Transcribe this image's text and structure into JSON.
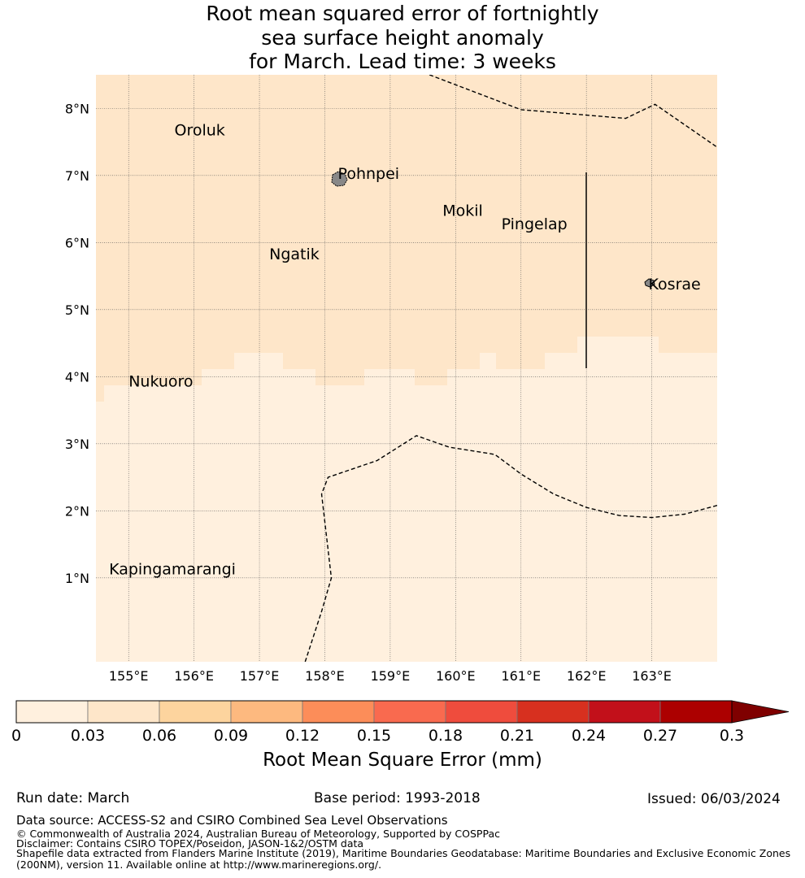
{
  "title": {
    "line1": "Root mean squared error of fortnightly",
    "line2": "sea surface height anomaly",
    "line3": "for March. Lead time: 3 weeks"
  },
  "map": {
    "lon_range": [
      154.5,
      164.0
    ],
    "lat_range": [
      -0.25,
      8.5
    ],
    "x_ticks": [
      {
        "lon": 155,
        "label": "155°E"
      },
      {
        "lon": 156,
        "label": "156°E"
      },
      {
        "lon": 157,
        "label": "157°E"
      },
      {
        "lon": 158,
        "label": "158°E"
      },
      {
        "lon": 159,
        "label": "159°E"
      },
      {
        "lon": 160,
        "label": "160°E"
      },
      {
        "lon": 161,
        "label": "161°E"
      },
      {
        "lon": 162,
        "label": "162°E"
      },
      {
        "lon": 163,
        "label": "163°E"
      }
    ],
    "y_ticks": [
      {
        "lat": 1,
        "label": "1°N"
      },
      {
        "lat": 2,
        "label": "2°N"
      },
      {
        "lat": 3,
        "label": "3°N"
      },
      {
        "lat": 4,
        "label": "4°N"
      },
      {
        "lat": 5,
        "label": "5°N"
      },
      {
        "lat": 6,
        "label": "6°N"
      },
      {
        "lat": 7,
        "label": "7°N"
      },
      {
        "lat": 8,
        "label": "8°N"
      }
    ],
    "places": [
      {
        "name": "Oroluk",
        "lon": 155.7,
        "lat": 7.6
      },
      {
        "name": "Pohnpei",
        "lon": 158.2,
        "lat": 6.95
      },
      {
        "name": "Mokil",
        "lon": 159.8,
        "lat": 6.4
      },
      {
        "name": "Pingelap",
        "lon": 160.7,
        "lat": 6.2
      },
      {
        "name": "Ngatik",
        "lon": 157.15,
        "lat": 5.75
      },
      {
        "name": "Kosrae",
        "lon": 162.95,
        "lat": 5.3
      },
      {
        "name": "Nukuoro",
        "lon": 155.0,
        "lat": 3.85
      },
      {
        "name": "Kapingamarangi",
        "lon": 154.7,
        "lat": 1.05
      }
    ],
    "rmse_band_high": 0.045,
    "rmse_band_low": 0.015,
    "eez_boundaries": [
      [
        [
          159.6,
          8.5
        ],
        [
          161.0,
          7.98
        ],
        [
          162.6,
          7.85
        ],
        [
          163.05,
          8.06
        ],
        [
          164.0,
          7.42
        ]
      ],
      [
        [
          157.7,
          -0.25
        ],
        [
          157.95,
          0.5
        ],
        [
          158.1,
          1.0
        ],
        [
          157.95,
          2.25
        ],
        [
          158.05,
          2.5
        ],
        [
          158.8,
          2.75
        ],
        [
          159.4,
          3.12
        ],
        [
          159.9,
          2.95
        ],
        [
          160.6,
          2.84
        ],
        [
          161.0,
          2.55
        ],
        [
          161.5,
          2.25
        ],
        [
          162.0,
          2.05
        ],
        [
          162.5,
          1.93
        ],
        [
          163.0,
          1.9
        ],
        [
          163.5,
          1.95
        ],
        [
          164.0,
          2.08
        ]
      ]
    ],
    "boundary_line": [
      [
        162.0,
        4.0
      ],
      [
        162.0,
        7.0
      ]
    ]
  },
  "colorbar": {
    "colors": [
      "#fff0de",
      "#fee6c9",
      "#fdd49e",
      "#fdb97f",
      "#fc8d59",
      "#f96a4f",
      "#ef4c3d",
      "#d7301f",
      "#c2101a",
      "#ac0000",
      "#7f0000"
    ],
    "tick_labels": [
      "0",
      "0.03",
      "0.06",
      "0.09",
      "0.12",
      "0.15",
      "0.18",
      "0.21",
      "0.24",
      "0.27",
      "0.3"
    ],
    "label": "Root Mean Square Error (mm)"
  },
  "info": {
    "run_date": "Run date: March",
    "base_period": "Base period: 1993-2018",
    "issued": "Issued: 06/03/2024",
    "data_source": "Data source: ACCESS-S2 and CSIRO Combined Sea Level Observations",
    "copyright": "© Commonwealth of Australia 2024, Australian Bureau of Meteorology, Supported by COSPPac",
    "disclaimer": "Disclaimer: Contains CSIRO TOPEX/Poseidon, JASON-1&2/OSTM data",
    "shapefile_1": "Shapefile data extracted from Flanders Marine Institute (2019), Maritime Boundaries Geodatabase: Maritime Boundaries and Exclusive Economic Zones",
    "shapefile_2": "(200NM), version 11. Available online at http://www.marineregions.org/."
  }
}
